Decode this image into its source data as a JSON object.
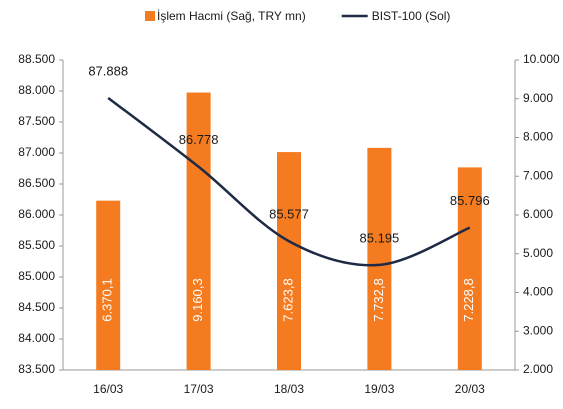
{
  "chart_data": {
    "type": "combo",
    "categories": [
      "16/03",
      "17/03",
      "18/03",
      "19/03",
      "20/03"
    ],
    "series": [
      {
        "name": "İşlem Hacmi (Sağ, TRY mn)",
        "type": "bar",
        "axis": "y2",
        "color": "#f47b20",
        "values": [
          6370.1,
          9160.3,
          7623.8,
          7732.8,
          7228.8
        ],
        "value_labels": [
          "6.370,1",
          "9.160,3",
          "7.623,8",
          "7.732,8",
          "7.228,8"
        ]
      },
      {
        "name": "BIST-100 (Sol)",
        "type": "line",
        "axis": "y",
        "color": "#1f2a44",
        "values": [
          87888,
          86778,
          85577,
          85195,
          85796
        ],
        "value_labels": [
          "87.888",
          "86.778",
          "85.577",
          "85.195",
          "85.796"
        ]
      }
    ],
    "ylim": [
      83500,
      88500
    ],
    "yticks": [
      {
        "value": 83500,
        "label": "83.500"
      },
      {
        "value": 84000,
        "label": "84.000"
      },
      {
        "value": 84500,
        "label": "84.500"
      },
      {
        "value": 85000,
        "label": "85.000"
      },
      {
        "value": 85500,
        "label": "85.500"
      },
      {
        "value": 86000,
        "label": "86.000"
      },
      {
        "value": 86500,
        "label": "86.500"
      },
      {
        "value": 87000,
        "label": "87.000"
      },
      {
        "value": 87500,
        "label": "87.500"
      },
      {
        "value": 88000,
        "label": "88.000"
      },
      {
        "value": 88500,
        "label": "88.500"
      }
    ],
    "y2lim": [
      2000,
      10000
    ],
    "y2ticks": [
      {
        "value": 2000,
        "label": "2.000"
      },
      {
        "value": 3000,
        "label": "3.000"
      },
      {
        "value": 4000,
        "label": "4.000"
      },
      {
        "value": 5000,
        "label": "5.000"
      },
      {
        "value": 6000,
        "label": "6.000"
      },
      {
        "value": 7000,
        "label": "7.000"
      },
      {
        "value": 8000,
        "label": "8.000"
      },
      {
        "value": 9000,
        "label": "9.000"
      },
      {
        "value": 10000,
        "label": "10.000"
      }
    ],
    "legend": "top"
  }
}
